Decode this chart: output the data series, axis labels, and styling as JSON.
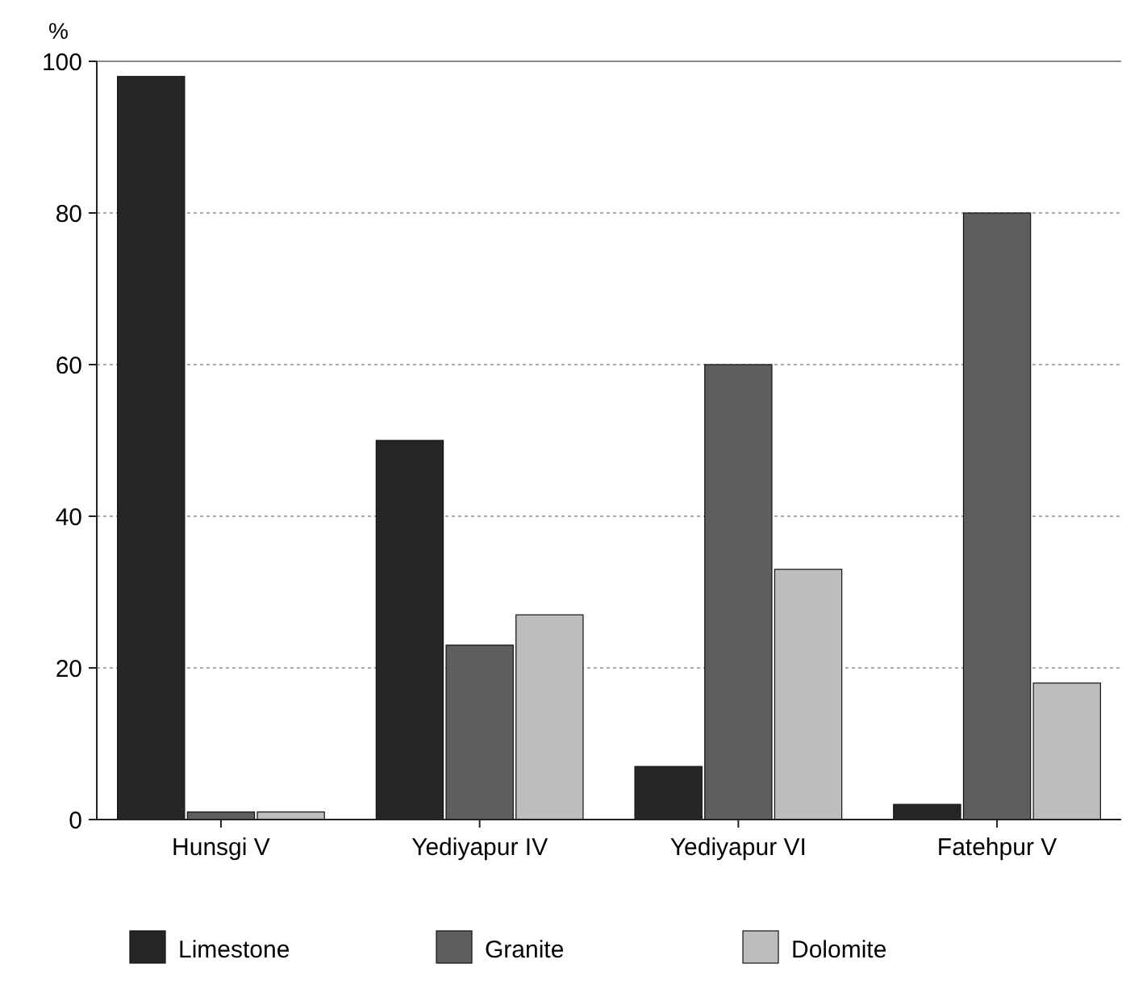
{
  "chart_data": {
    "type": "bar",
    "ylabel": "%",
    "categories": [
      "Hunsgi V",
      "Yediyapur IV",
      "Yediyapur VI",
      "Fatehpur V"
    ],
    "series": [
      {
        "name": "Limestone",
        "color": "#262626",
        "values": [
          98,
          50,
          7,
          2
        ]
      },
      {
        "name": "Granite",
        "color": "#5e5e5e",
        "values": [
          1,
          23,
          60,
          80
        ]
      },
      {
        "name": "Dolomite",
        "color": "#bdbdbd",
        "values": [
          1,
          27,
          33,
          18
        ]
      }
    ],
    "ylim": [
      0,
      100
    ],
    "yticks": [
      0,
      20,
      40,
      60,
      80,
      100
    ],
    "grid": "y",
    "legend": "bottom"
  }
}
